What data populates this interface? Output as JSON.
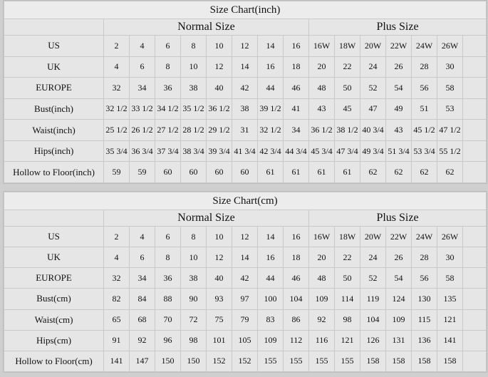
{
  "charts": [
    {
      "title": "Size Chart(inch)",
      "normal_label": "Normal Size",
      "plus_label": "Plus Size",
      "rows": [
        {
          "label": "US",
          "normal": [
            "2",
            "4",
            "6",
            "8",
            "10",
            "12",
            "14",
            "16"
          ],
          "plus": [
            "16W",
            "18W",
            "20W",
            "22W",
            "24W",
            "26W"
          ]
        },
        {
          "label": "UK",
          "normal": [
            "4",
            "6",
            "8",
            "10",
            "12",
            "14",
            "16",
            "18"
          ],
          "plus": [
            "20",
            "22",
            "24",
            "26",
            "28",
            "30"
          ]
        },
        {
          "label": "EUROPE",
          "normal": [
            "32",
            "34",
            "36",
            "38",
            "40",
            "42",
            "44",
            "46"
          ],
          "plus": [
            "48",
            "50",
            "52",
            "54",
            "56",
            "58"
          ]
        },
        {
          "label": "Bust(inch)",
          "normal": [
            "32 1/2",
            "33 1/2",
            "34 1/2",
            "35 1/2",
            "36 1/2",
            "38",
            "39 1/2",
            "41"
          ],
          "plus": [
            "43",
            "45",
            "47",
            "49",
            "51",
            "53"
          ]
        },
        {
          "label": "Waist(inch)",
          "normal": [
            "25 1/2",
            "26 1/2",
            "27 1/2",
            "28 1/2",
            "29 1/2",
            "31",
            "32 1/2",
            "34"
          ],
          "plus": [
            "36 1/2",
            "38 1/2",
            "40 3/4",
            "43",
            "45 1/2",
            "47 1/2"
          ]
        },
        {
          "label": "Hips(inch)",
          "normal": [
            "35 3/4",
            "36 3/4",
            "37 3/4",
            "38 3/4",
            "39 3/4",
            "41 3/4",
            "42 3/4",
            "44 3/4"
          ],
          "plus": [
            "45 3/4",
            "47 3/4",
            "49 3/4",
            "51 3/4",
            "53 3/4",
            "55 1/2"
          ]
        },
        {
          "label": "Hollow to Floor(inch)",
          "normal": [
            "59",
            "59",
            "60",
            "60",
            "60",
            "60",
            "61",
            "61"
          ],
          "plus": [
            "61",
            "61",
            "62",
            "62",
            "62",
            "62"
          ]
        }
      ]
    },
    {
      "title": "Size Chart(cm)",
      "normal_label": "Normal Size",
      "plus_label": "Plus Size",
      "rows": [
        {
          "label": "US",
          "normal": [
            "2",
            "4",
            "6",
            "8",
            "10",
            "12",
            "14",
            "16"
          ],
          "plus": [
            "16W",
            "18W",
            "20W",
            "22W",
            "24W",
            "26W"
          ]
        },
        {
          "label": "UK",
          "normal": [
            "4",
            "6",
            "8",
            "10",
            "12",
            "14",
            "16",
            "18"
          ],
          "plus": [
            "20",
            "22",
            "24",
            "26",
            "28",
            "30"
          ]
        },
        {
          "label": "EUROPE",
          "normal": [
            "32",
            "34",
            "36",
            "38",
            "40",
            "42",
            "44",
            "46"
          ],
          "plus": [
            "48",
            "50",
            "52",
            "54",
            "56",
            "58"
          ]
        },
        {
          "label": "Bust(cm)",
          "normal": [
            "82",
            "84",
            "88",
            "90",
            "93",
            "97",
            "100",
            "104"
          ],
          "plus": [
            "109",
            "114",
            "119",
            "124",
            "130",
            "135"
          ]
        },
        {
          "label": "Waist(cm)",
          "normal": [
            "65",
            "68",
            "70",
            "72",
            "75",
            "79",
            "83",
            "86"
          ],
          "plus": [
            "92",
            "98",
            "104",
            "109",
            "115",
            "121"
          ]
        },
        {
          "label": "Hips(cm)",
          "normal": [
            "91",
            "92",
            "96",
            "98",
            "101",
            "105",
            "109",
            "112"
          ],
          "plus": [
            "116",
            "121",
            "126",
            "131",
            "136",
            "141"
          ]
        },
        {
          "label": "Hollow to Floor(cm)",
          "normal": [
            "141",
            "147",
            "150",
            "150",
            "152",
            "152",
            "155",
            "155"
          ],
          "plus": [
            "155",
            "155",
            "158",
            "158",
            "158",
            "158"
          ]
        }
      ]
    }
  ]
}
